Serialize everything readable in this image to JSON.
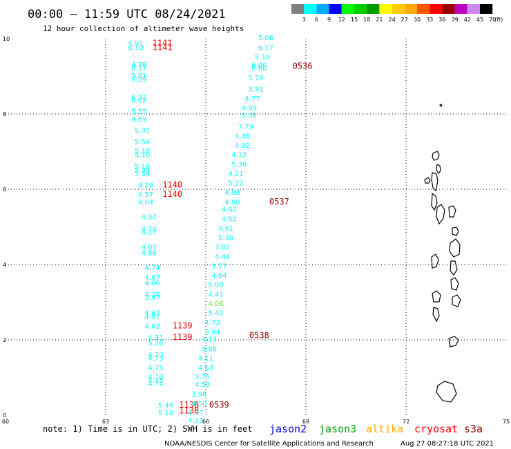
{
  "header": {
    "title": "00:00 — 11:59 UTC 08/24/2021",
    "subtitle": "12 hour collection of altimeter wave heights"
  },
  "colorbar": {
    "labels": [
      "3",
      "6",
      "9",
      "12",
      "15",
      "18",
      "21",
      "24",
      "27",
      "30",
      "33",
      "36",
      "39",
      "42",
      "45",
      "70"
    ],
    "colors": [
      "#808080",
      "#00ffff",
      "#00aaff",
      "#0000ff",
      "#00ff00",
      "#00cc00",
      "#009900",
      "#ffff00",
      "#ffcc00",
      "#ffaa00",
      "#ff5500",
      "#ff0000",
      "#990000",
      "#bb00bb",
      "#cc88ee",
      "#000000"
    ],
    "unit": "(ft)"
  },
  "footer": {
    "note": "note:  1) Time is in UTC; 2) SWH is in feet",
    "credit": "NOAA/NESDIS Center for Satellite Applications and Research",
    "timestamp": "Aug 27 08:27:18 UTC 2021",
    "satellites": [
      {
        "name": "jason2",
        "color": "#0000dd"
      },
      {
        "name": "jason3",
        "color": "#00aa00"
      },
      {
        "name": "altika",
        "color": "#ffaa00"
      },
      {
        "name": "cryosat",
        "color": "#ff0000"
      },
      {
        "name": "s3a",
        "color": "#990000"
      }
    ]
  },
  "chart_data": {
    "type": "scatter",
    "title": "12 hour collection of altimeter wave heights",
    "x_ticks": [
      60,
      63,
      66,
      69,
      72,
      75
    ],
    "y_ticks": [
      0,
      2,
      4,
      6,
      8,
      10
    ],
    "xlim": [
      60,
      75
    ],
    "ylim": [
      0,
      10
    ],
    "grid": true,
    "series": [
      {
        "name": "cryosat",
        "color": "#00ffff",
        "points": [
          {
            "lon": 63.9,
            "lat": 9.8,
            "v": "5.91"
          },
          {
            "lon": 63.9,
            "lat": 9.7,
            "v": "6.10"
          },
          {
            "lon": 64.0,
            "lat": 9.25,
            "v": "4.79"
          },
          {
            "lon": 64.0,
            "lat": 9.16,
            "v": "6.17"
          },
          {
            "lon": 64.0,
            "lat": 8.95,
            "v": "5.81"
          },
          {
            "lon": 64.0,
            "lat": 8.85,
            "v": "6.29"
          },
          {
            "lon": 64.0,
            "lat": 8.38,
            "v": "6.32"
          },
          {
            "lon": 64.0,
            "lat": 8.3,
            "v": "6.02"
          },
          {
            "lon": 64.0,
            "lat": 8.0,
            "v": "5.55"
          },
          {
            "lon": 64.0,
            "lat": 7.8,
            "v": "4.69"
          },
          {
            "lon": 64.1,
            "lat": 7.5,
            "v": "5.37"
          },
          {
            "lon": 64.1,
            "lat": 7.2,
            "v": "5.54"
          },
          {
            "lon": 64.1,
            "lat": 6.95,
            "v": "5.18"
          },
          {
            "lon": 64.1,
            "lat": 6.85,
            "v": "5.10"
          },
          {
            "lon": 64.1,
            "lat": 6.55,
            "v": "5.16"
          },
          {
            "lon": 64.1,
            "lat": 6.45,
            "v": "5.38"
          },
          {
            "lon": 64.1,
            "lat": 6.35,
            "v": "5.54"
          },
          {
            "lon": 64.2,
            "lat": 6.05,
            "v": "4.28"
          },
          {
            "lon": 64.2,
            "lat": 5.8,
            "v": "4.57"
          },
          {
            "lon": 64.2,
            "lat": 5.6,
            "v": "4.04"
          },
          {
            "lon": 64.3,
            "lat": 5.2,
            "v": "4.37"
          },
          {
            "lon": 64.3,
            "lat": 4.88,
            "v": "4.70"
          },
          {
            "lon": 64.3,
            "lat": 4.8,
            "v": "4.17"
          },
          {
            "lon": 64.3,
            "lat": 4.4,
            "v": "4.05"
          },
          {
            "lon": 64.3,
            "lat": 4.25,
            "v": "4.86"
          },
          {
            "lon": 64.4,
            "lat": 3.85,
            "v": "4.74"
          },
          {
            "lon": 64.4,
            "lat": 3.6,
            "v": "4.67"
          },
          {
            "lon": 64.4,
            "lat": 3.45,
            "v": "4.06"
          },
          {
            "lon": 64.4,
            "lat": 3.15,
            "v": "4.28"
          },
          {
            "lon": 64.4,
            "lat": 3.06,
            "v": "3.47"
          },
          {
            "lon": 64.4,
            "lat": 2.65,
            "v": "4.67"
          },
          {
            "lon": 64.4,
            "lat": 2.55,
            "v": "4.87"
          },
          {
            "lon": 64.4,
            "lat": 2.3,
            "v": "4.62"
          },
          {
            "lon": 64.5,
            "lat": 2.0,
            "v": "4.31"
          },
          {
            "lon": 64.5,
            "lat": 1.85,
            "v": "5.26"
          },
          {
            "lon": 64.5,
            "lat": 1.55,
            "v": "4.20"
          },
          {
            "lon": 64.5,
            "lat": 1.45,
            "v": "4.73"
          },
          {
            "lon": 64.5,
            "lat": 1.2,
            "v": "4.75"
          },
          {
            "lon": 64.5,
            "lat": 0.95,
            "v": "4.70"
          },
          {
            "lon": 64.5,
            "lat": 0.86,
            "v": "4.35"
          },
          {
            "lon": 64.5,
            "lat": 0.78,
            "v": "4.74"
          },
          {
            "lon": 64.8,
            "lat": 0.2,
            "v": "5.44"
          },
          {
            "lon": 64.8,
            "lat": 0.0,
            "v": "5.10"
          }
        ],
        "times": [
          {
            "lon": 64.7,
            "lat": 9.81,
            "t": "1141"
          },
          {
            "lon": 64.7,
            "lat": 9.7,
            "t": "1141"
          },
          {
            "lon": 65.0,
            "lat": 6.05,
            "t": "1140"
          },
          {
            "lon": 65.0,
            "lat": 5.8,
            "t": "1140"
          },
          {
            "lon": 65.3,
            "lat": 2.3,
            "t": "1139"
          },
          {
            "lon": 65.3,
            "lat": 2.0,
            "t": "1139"
          },
          {
            "lon": 65.5,
            "lat": 0.2,
            "t": "1138"
          },
          {
            "lon": 65.5,
            "lat": 0.05,
            "t": "1138"
          }
        ]
      },
      {
        "name": "s3a",
        "color": "#00ffff",
        "points": [
          {
            "lon": 67.8,
            "lat": 9.96,
            "v": "5.06"
          },
          {
            "lon": 67.8,
            "lat": 9.7,
            "v": "6.17"
          },
          {
            "lon": 67.7,
            "lat": 9.45,
            "v": "5.19"
          },
          {
            "lon": 67.6,
            "lat": 9.24,
            "v": "6.00"
          },
          {
            "lon": 67.6,
            "lat": 9.16,
            "v": "6.60"
          },
          {
            "lon": 67.5,
            "lat": 8.9,
            "v": "5.74"
          },
          {
            "lon": 67.5,
            "lat": 8.6,
            "v": "3.91"
          },
          {
            "lon": 67.4,
            "lat": 8.35,
            "v": "4.77"
          },
          {
            "lon": 67.3,
            "lat": 8.1,
            "v": "4.99"
          },
          {
            "lon": 67.3,
            "lat": 7.9,
            "v": "5.58"
          },
          {
            "lon": 67.2,
            "lat": 7.6,
            "v": "7.79"
          },
          {
            "lon": 67.1,
            "lat": 7.35,
            "v": "4.48"
          },
          {
            "lon": 67.1,
            "lat": 7.1,
            "v": "4.92"
          },
          {
            "lon": 67.0,
            "lat": 6.85,
            "v": "4.12"
          },
          {
            "lon": 67.0,
            "lat": 6.6,
            "v": "5.39"
          },
          {
            "lon": 66.9,
            "lat": 6.35,
            "v": "4.21"
          },
          {
            "lon": 66.9,
            "lat": 6.1,
            "v": "5.22"
          },
          {
            "lon": 66.8,
            "lat": 5.85,
            "v": "4.96"
          },
          {
            "lon": 66.8,
            "lat": 5.6,
            "v": "4.98"
          },
          {
            "lon": 66.7,
            "lat": 5.4,
            "v": "4.62"
          },
          {
            "lon": 66.7,
            "lat": 5.15,
            "v": "4.52"
          },
          {
            "lon": 66.6,
            "lat": 4.9,
            "v": "4.91"
          },
          {
            "lon": 66.6,
            "lat": 4.65,
            "v": "5.38"
          },
          {
            "lon": 66.5,
            "lat": 4.4,
            "v": "3.82"
          },
          {
            "lon": 66.5,
            "lat": 4.15,
            "v": "4.44"
          },
          {
            "lon": 66.4,
            "lat": 3.9,
            "v": "3.77"
          },
          {
            "lon": 66.4,
            "lat": 3.65,
            "v": "4.64"
          },
          {
            "lon": 66.3,
            "lat": 3.4,
            "v": "5.00"
          },
          {
            "lon": 66.3,
            "lat": 3.15,
            "v": "4.41"
          },
          {
            "lon": 66.3,
            "lat": 2.9,
            "v": "4.06"
          },
          {
            "lon": 66.3,
            "lat": 2.65,
            "v": "5.42"
          },
          {
            "lon": 66.2,
            "lat": 2.4,
            "v": "4.73"
          },
          {
            "lon": 66.2,
            "lat": 2.15,
            "v": "3.94"
          },
          {
            "lon": 66.1,
            "lat": 1.95,
            "v": "4.14"
          },
          {
            "lon": 66.1,
            "lat": 1.7,
            "v": "3.86"
          },
          {
            "lon": 66.0,
            "lat": 1.45,
            "v": "4.11"
          },
          {
            "lon": 66.0,
            "lat": 1.2,
            "v": "4.63"
          },
          {
            "lon": 65.9,
            "lat": 0.95,
            "v": "3.75"
          },
          {
            "lon": 65.9,
            "lat": 0.75,
            "v": "4.53"
          },
          {
            "lon": 65.8,
            "lat": 0.5,
            "v": "3.96"
          },
          {
            "lon": 65.8,
            "lat": 0.25,
            "v": "4.50"
          },
          {
            "lon": 65.7,
            "lat": 0.0,
            "v": "4.37"
          },
          {
            "lon": 65.7,
            "lat": -0.2,
            "v": "4.13"
          }
        ],
        "times": [
          {
            "lon": 68.9,
            "lat": 9.2,
            "t": "0536"
          },
          {
            "lon": 68.2,
            "lat": 5.6,
            "t": "0537"
          },
          {
            "lon": 67.6,
            "lat": 2.05,
            "t": "0538"
          },
          {
            "lon": 66.4,
            "lat": 0.2,
            "t": "0539"
          }
        ]
      }
    ]
  }
}
